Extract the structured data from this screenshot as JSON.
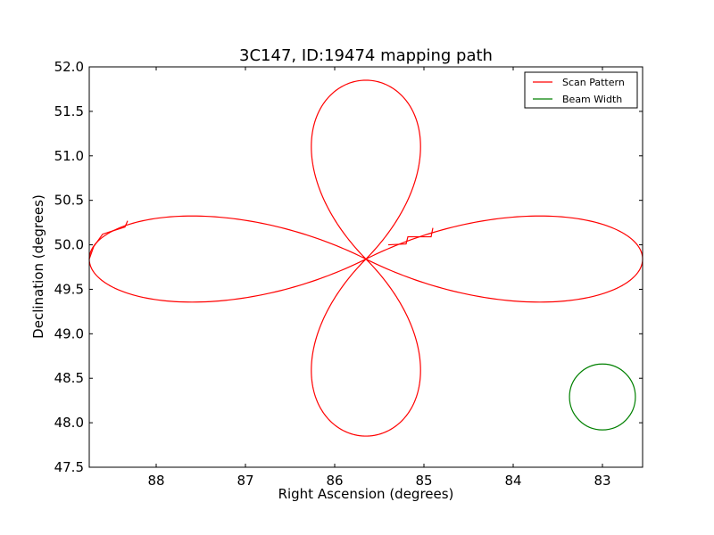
{
  "chart_data": {
    "type": "line",
    "title": "3C147, ID:19474 mapping path",
    "xlabel": "Right Ascension (degrees)",
    "ylabel": "Declination (degrees)",
    "xlim": [
      88.75,
      82.55
    ],
    "ylim": [
      47.5,
      52.0
    ],
    "x_ticks": [
      88,
      87,
      86,
      85,
      84,
      83
    ],
    "y_ticks": [
      47.5,
      48.0,
      48.5,
      49.0,
      49.5,
      50.0,
      50.5,
      51.0,
      51.5,
      52.0
    ],
    "x_tick_labels": [
      "88",
      "87",
      "86",
      "85",
      "84",
      "83"
    ],
    "y_tick_labels": [
      "47.5",
      "48.0",
      "48.5",
      "49.0",
      "49.5",
      "50.0",
      "50.5",
      "51.0",
      "51.5",
      "52.0"
    ],
    "grid": false,
    "legend_position": "top-right",
    "series": [
      {
        "name": "Scan Pattern",
        "color": "#ff0000",
        "shape": "four-lobed scan path through center",
        "center": [
          85.65,
          49.84
        ],
        "lobe_extents": {
          "top_dec": 51.85,
          "bottom_dec": 47.85,
          "left_ra": 88.75,
          "right_ra": 82.55,
          "top_bottom_half_width_ra": 0.85,
          "left_right_half_height_dec": 0.55
        },
        "step_points": [
          [
            88.75,
            49.84
          ],
          [
            88.7,
            49.98
          ],
          [
            88.6,
            50.12
          ],
          [
            88.35,
            50.2
          ],
          [
            88.32,
            50.27
          ],
          [
            84.9,
            50.19
          ],
          [
            84.92,
            50.09
          ],
          [
            85.18,
            50.09
          ],
          [
            85.2,
            50.01
          ],
          [
            85.4,
            50.0
          ]
        ]
      },
      {
        "name": "Beam Width",
        "color": "#008000",
        "shape": "circle",
        "center": [
          83.0,
          48.29
        ],
        "radius_dec": 0.37
      }
    ]
  }
}
